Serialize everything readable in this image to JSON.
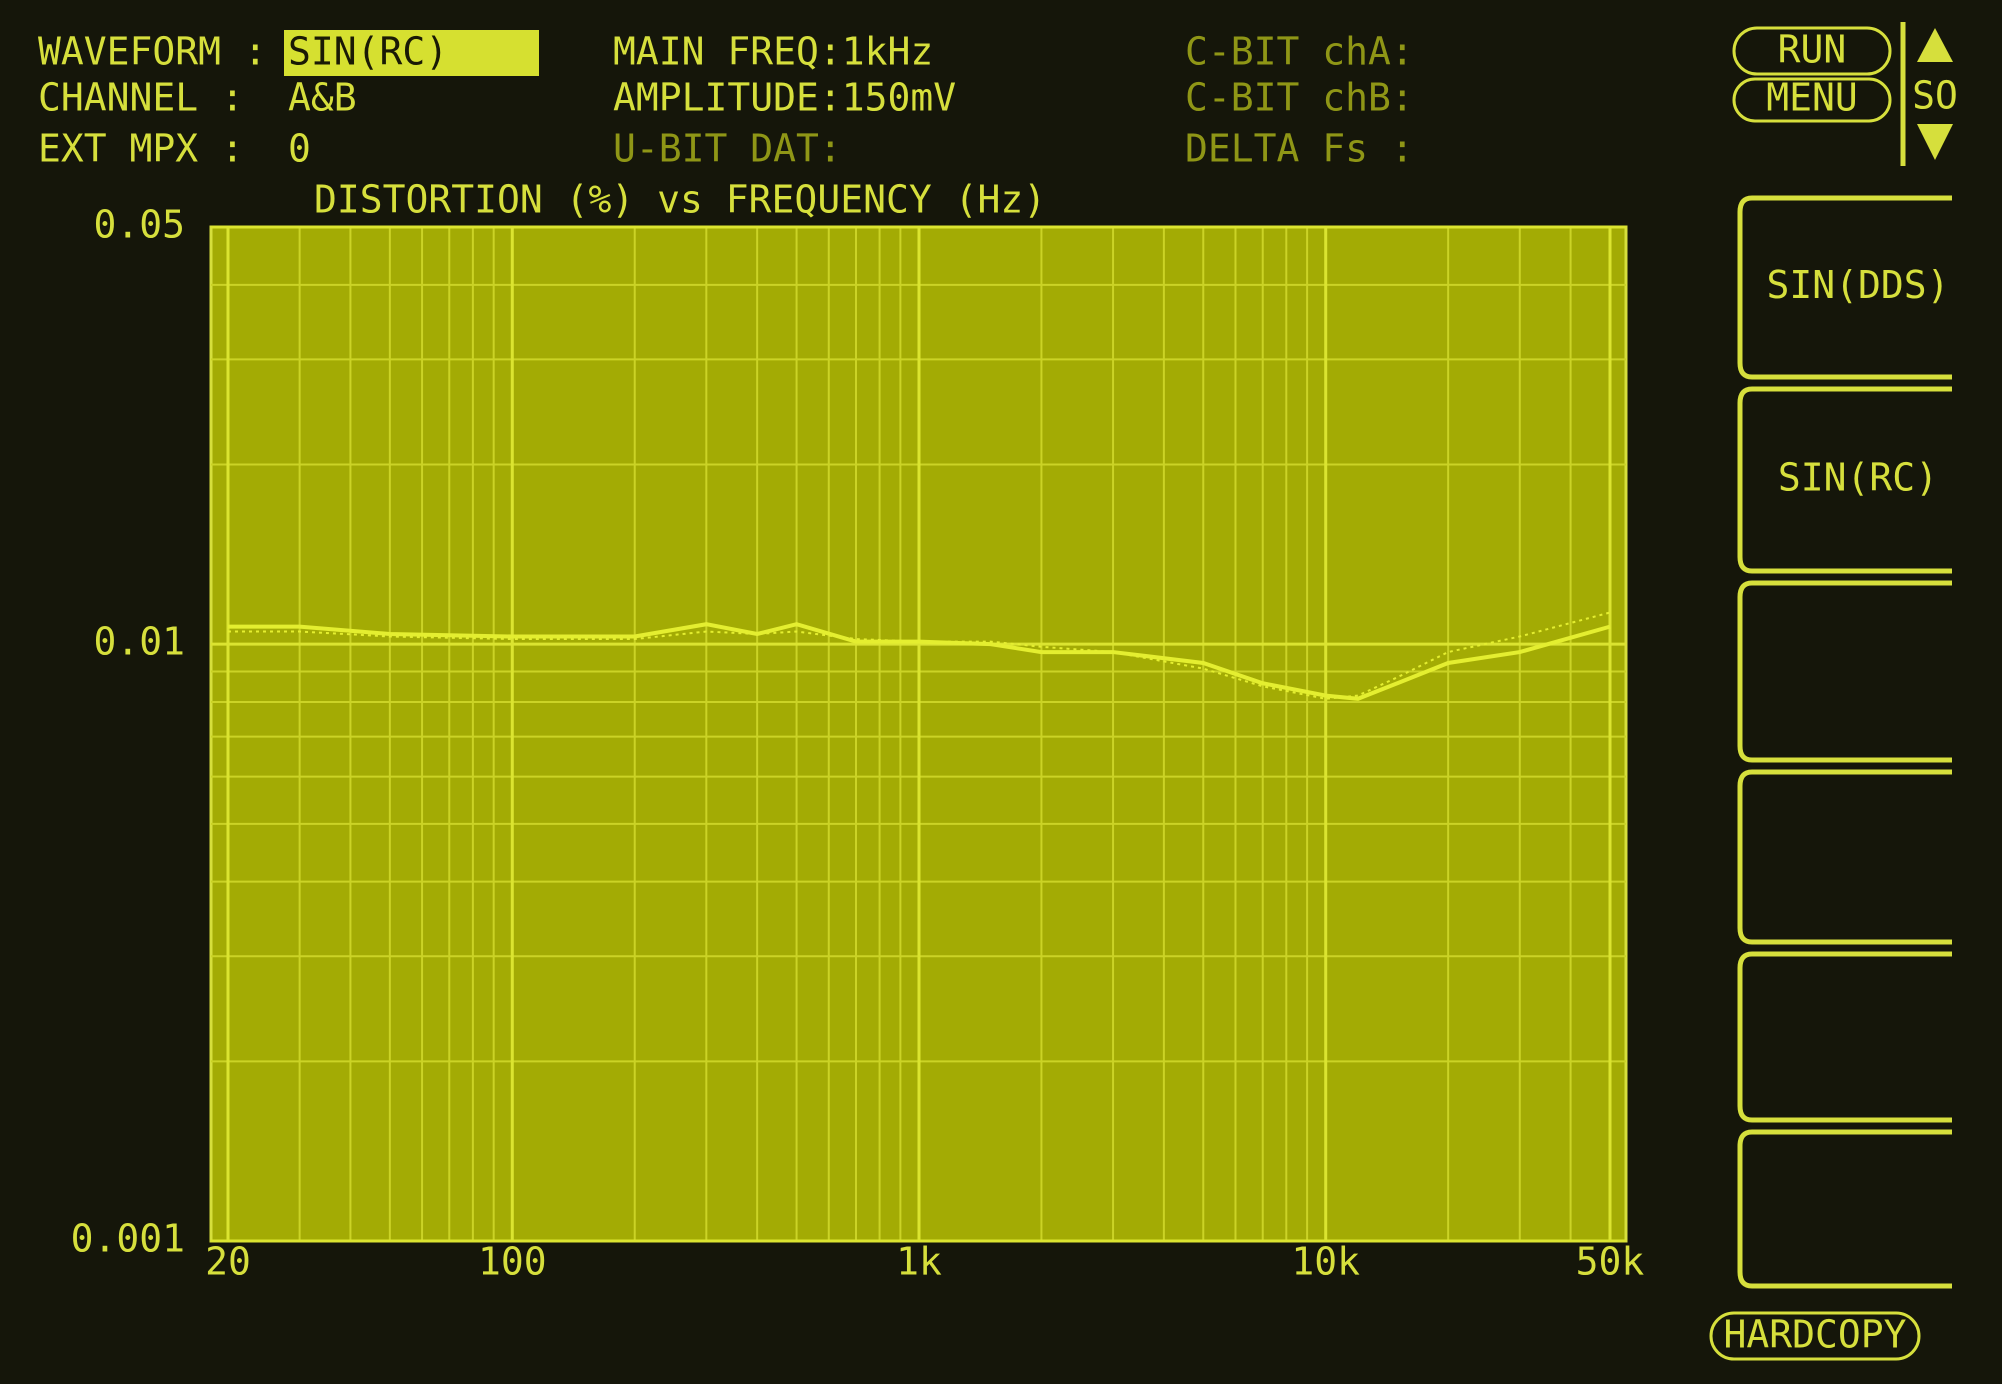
{
  "header": {
    "fields": [
      {
        "label": "WAVEFORM :",
        "value": "SIN(RC)"
      },
      {
        "label": "CHANNEL  :",
        "value": "A&B"
      },
      {
        "label": "EXT MPX  :",
        "value": "0"
      }
    ],
    "middle": [
      "MAIN FREQ:1kHz",
      "AMPLITUDE:150mV",
      "U-BIT DAT:"
    ],
    "right": [
      "C-BIT chA:",
      "C-BIT chB:",
      "DELTA Fs :"
    ]
  },
  "buttons": {
    "run": "RUN",
    "menu": "MENU",
    "scroll": "SO"
  },
  "softkeys": [
    "SIN(DDS)",
    "SIN(RC)"
  ],
  "hardcopy": "HARDCOPY",
  "chart_data": {
    "type": "line",
    "title": "DISTORTION (%) vs FREQUENCY (Hz)",
    "x": [
      20,
      30,
      50,
      100,
      200,
      300,
      400,
      500,
      700,
      1000,
      1500,
      2000,
      3000,
      5000,
      7000,
      10000,
      12000,
      15000,
      20000,
      30000,
      50000
    ],
    "series": [
      {
        "color": "#e4ee30",
        "style": "solid",
        "values": [
          0.0107,
          0.0107,
          0.0104,
          0.0103,
          0.0103,
          0.0108,
          0.0104,
          0.0108,
          0.0101,
          0.0101,
          0.01,
          0.0097,
          0.0097,
          0.0093,
          0.0086,
          0.0082,
          0.0081,
          0.0086,
          0.0093,
          0.0097,
          0.0107
        ]
      },
      {
        "color": "#e4ee30",
        "style": "dotted",
        "values": [
          0.0105,
          0.0105,
          0.0103,
          0.0102,
          0.0102,
          0.0105,
          0.0104,
          0.0105,
          0.0102,
          0.0101,
          0.0101,
          0.0099,
          0.0097,
          0.0091,
          0.0085,
          0.0081,
          0.0082,
          0.0088,
          0.0097,
          0.0103,
          0.0113
        ]
      }
    ],
    "xlim": [
      20,
      50000
    ],
    "ylim": [
      0.001,
      0.05
    ],
    "xticks": [
      20,
      100,
      {
        "value": 1000,
        "label": "1k"
      },
      {
        "value": 10000,
        "label": "10k"
      },
      {
        "value": 50000,
        "label": "50k"
      }
    ],
    "yticks": [
      0.001,
      0.01,
      0.05
    ],
    "xscale": "log",
    "yscale": "log",
    "grid": true
  }
}
